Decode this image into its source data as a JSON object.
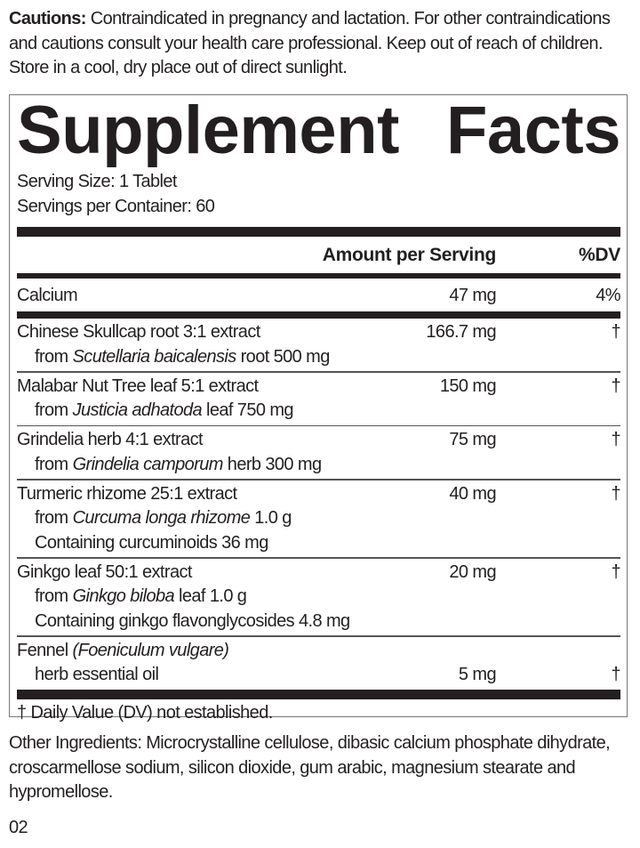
{
  "cautions": {
    "label": "Cautions:",
    "text": " Contraindicated in pregnancy and lactation. For other contraindications and cautions consult your health care professional. Keep out of reach of children. Store in a cool, dry place out of direct sunlight."
  },
  "facts": {
    "title_word1": "Supplement",
    "title_word2": "Facts",
    "serving_size": "Serving Size: 1 Tablet",
    "servings_per_container": "Servings per Container: 60",
    "header_amount": "Amount per Serving",
    "header_dv": "%DV",
    "calcium": {
      "name": "Calcium",
      "amount": "47 mg",
      "dv": "4%"
    },
    "ingredients": [
      {
        "name": "Chinese Skullcap root 3:1 extract",
        "amount": "166.7 mg",
        "dv": "†",
        "from_pre": "from ",
        "from_latin": "Scutellaria baicalensis",
        "from_post": " root 500 mg"
      },
      {
        "name": "Malabar Nut Tree leaf 5:1 extract",
        "amount": "150 mg",
        "dv": "†",
        "from_pre": "from ",
        "from_latin": "Justicia adhatoda",
        "from_post": " leaf 750 mg"
      },
      {
        "name": "Grindelia herb 4:1 extract",
        "amount": "75 mg",
        "dv": "†",
        "from_pre": "from ",
        "from_latin": "Grindelia camporum",
        "from_post": " herb 300 mg"
      },
      {
        "name": "Turmeric rhizome 25:1 extract",
        "amount": "40 mg",
        "dv": "†",
        "from_pre": "from ",
        "from_latin": "Curcuma longa rhizome",
        "from_post": " 1.0 g",
        "containing": "Containing curcuminoids 36 mg"
      },
      {
        "name": "Ginkgo leaf 50:1 extract",
        "amount": "20 mg",
        "dv": "†",
        "from_pre": "from ",
        "from_latin": "Ginkgo biloba",
        "from_post": " leaf 1.0 g",
        "containing": "Containing ginkgo flavonglycosides 4.8 mg"
      }
    ],
    "fennel": {
      "name": "Fennel ",
      "latin": "(Foeniculum vulgare)",
      "line2": "herb essential oil",
      "amount": "5 mg",
      "dv": "†"
    },
    "footnote": "† Daily Value (DV) not established."
  },
  "other_ingredients": "Other Ingredients: Microcrystalline cellulose, dibasic calcium phosphate dihydrate, croscarmellose sodium, silicon dioxide, gum arabic, magnesium stearate and hypromellose.",
  "code": "02"
}
